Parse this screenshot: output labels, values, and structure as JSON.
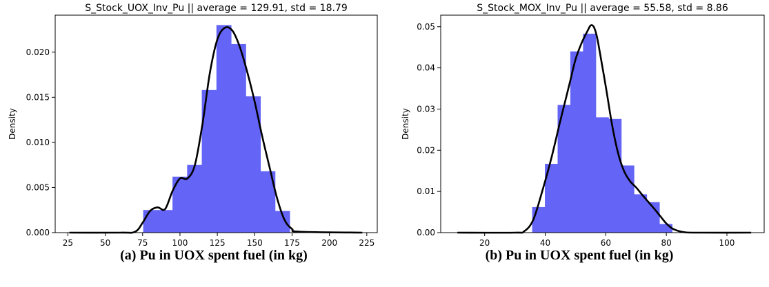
{
  "chart_data": [
    {
      "type": "bar",
      "title": "S_Stock_UOX_Inv_Pu || average = 129.91,  std = 18.79",
      "xlabel": "",
      "ylabel": "Density",
      "xlim": [
        16.5,
        232.0
      ],
      "ylim": [
        0,
        0.0241
      ],
      "xticks": [
        25,
        50,
        75,
        100,
        125,
        150,
        175,
        200,
        225
      ],
      "yticks": [
        0.0,
        0.005,
        0.01,
        0.015,
        0.02
      ],
      "ytick_labels": [
        "0.000",
        "0.005",
        "0.010",
        "0.015",
        "0.020"
      ],
      "bars": [
        {
          "x0": 75.4,
          "x1": 85.2,
          "value": 0.0025
        },
        {
          "x0": 85.2,
          "x1": 95.0,
          "value": 0.0025
        },
        {
          "x0": 95.0,
          "x1": 104.8,
          "value": 0.0062
        },
        {
          "x0": 104.8,
          "x1": 114.6,
          "value": 0.0075
        },
        {
          "x0": 114.6,
          "x1": 124.4,
          "value": 0.0158
        },
        {
          "x0": 124.4,
          "x1": 134.2,
          "value": 0.023
        },
        {
          "x0": 134.2,
          "x1": 144.0,
          "value": 0.0209
        },
        {
          "x0": 144.0,
          "x1": 153.8,
          "value": 0.0151
        },
        {
          "x0": 153.8,
          "x1": 163.6,
          "value": 0.0068
        },
        {
          "x0": 163.6,
          "x1": 173.4,
          "value": 0.0024
        }
      ],
      "kde": {
        "x": [
          26,
          60,
          70,
          75,
          80,
          85,
          90,
          95,
          100,
          105,
          110,
          115,
          120,
          125,
          130,
          135,
          140,
          145,
          150,
          155,
          160,
          165,
          170,
          175,
          180,
          222
        ],
        "y": [
          0,
          0,
          0.0001,
          0.0011,
          0.0024,
          0.0028,
          0.0026,
          0.0046,
          0.006,
          0.006,
          0.0075,
          0.012,
          0.0177,
          0.0214,
          0.0227,
          0.0224,
          0.0206,
          0.0178,
          0.0145,
          0.0107,
          0.0072,
          0.0038,
          0.0014,
          0.0004,
          0.0001,
          0
        ]
      },
      "bar_color": "#6464f6",
      "line_color": "#000000",
      "grid": false,
      "legend": "none"
    },
    {
      "type": "bar",
      "title": "S_Stock_MOX_Inv_Pu || average = 55.58,  std = 8.86",
      "xlabel": "",
      "ylabel": "Density",
      "xlim": [
        5.5,
        112.3
      ],
      "ylim": [
        0,
        0.0528
      ],
      "xticks": [
        20,
        40,
        60,
        80,
        100
      ],
      "yticks": [
        0.0,
        0.01,
        0.02,
        0.03,
        0.04,
        0.05
      ],
      "ytick_labels": [
        "0.00",
        "0.01",
        "0.02",
        "0.03",
        "0.04",
        "0.05"
      ],
      "bars": [
        {
          "x0": 35.7,
          "x1": 39.9,
          "value": 0.0062
        },
        {
          "x0": 39.9,
          "x1": 44.1,
          "value": 0.0167
        },
        {
          "x0": 44.1,
          "x1": 48.3,
          "value": 0.031
        },
        {
          "x0": 48.3,
          "x1": 52.5,
          "value": 0.044
        },
        {
          "x0": 52.5,
          "x1": 56.7,
          "value": 0.0483
        },
        {
          "x0": 56.7,
          "x1": 60.9,
          "value": 0.028
        },
        {
          "x0": 60.9,
          "x1": 65.1,
          "value": 0.0276
        },
        {
          "x0": 65.1,
          "x1": 69.3,
          "value": 0.0163
        },
        {
          "x0": 69.3,
          "x1": 73.5,
          "value": 0.0093
        },
        {
          "x0": 73.5,
          "x1": 77.7,
          "value": 0.0074
        },
        {
          "x0": 77.7,
          "x1": 81.9,
          "value": 0.0021
        }
      ],
      "kde": {
        "x": [
          11,
          30,
          33,
          36,
          39,
          42,
          45,
          48,
          50,
          52,
          54,
          55,
          56,
          57,
          58,
          60,
          62,
          64,
          66,
          68,
          70,
          72,
          74,
          76,
          78,
          80,
          82,
          84,
          86,
          90,
          108
        ],
        "y": [
          0,
          0,
          0.0003,
          0.003,
          0.01,
          0.018,
          0.0272,
          0.036,
          0.042,
          0.046,
          0.049,
          0.0503,
          0.05,
          0.0478,
          0.044,
          0.0355,
          0.0265,
          0.0195,
          0.015,
          0.0125,
          0.011,
          0.0092,
          0.0075,
          0.0058,
          0.004,
          0.0022,
          0.001,
          0.0004,
          0.0001,
          0,
          0
        ]
      },
      "bar_color": "#6464f6",
      "line_color": "#000000",
      "grid": false,
      "legend": "none"
    }
  ],
  "captions": {
    "a": "(a) Pu in UOX spent fuel (in kg)",
    "b": "(b) Pu in UOX spent fuel (in kg)"
  }
}
